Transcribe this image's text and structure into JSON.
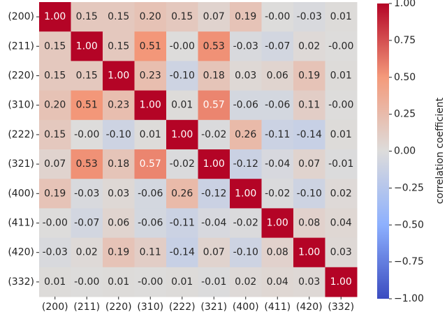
{
  "chart_data": {
    "type": "heatmap",
    "colormap": "coolwarm",
    "x_categories": [
      "(200)",
      "(211)",
      "(220)",
      "(310)",
      "(222)",
      "(321)",
      "(400)",
      "(411)",
      "(420)",
      "(332)"
    ],
    "y_categories": [
      "(200)",
      "(211)",
      "(220)",
      "(310)",
      "(222)",
      "(321)",
      "(400)",
      "(411)",
      "(420)",
      "(332)"
    ],
    "values": [
      [
        1,
        0.15,
        0.15,
        0.2,
        0.15,
        0.07,
        0.19,
        0,
        -0.03,
        0.01
      ],
      [
        0.15,
        1,
        0.15,
        0.51,
        0,
        0.53,
        -0.03,
        -0.07,
        0.02,
        0
      ],
      [
        0.15,
        0.15,
        1,
        0.23,
        -0.1,
        0.18,
        0.03,
        0.06,
        0.19,
        0.01
      ],
      [
        0.2,
        0.51,
        0.23,
        1,
        0.01,
        0.57,
        -0.06,
        -0.06,
        0.11,
        0
      ],
      [
        0.15,
        0,
        -0.1,
        0.01,
        1,
        -0.02,
        0.26,
        -0.11,
        -0.14,
        0.01
      ],
      [
        0.07,
        0.53,
        0.18,
        0.57,
        -0.02,
        1,
        -0.12,
        -0.04,
        0.07,
        -0.01
      ],
      [
        0.19,
        -0.03,
        0.03,
        -0.06,
        0.26,
        -0.12,
        1,
        -0.02,
        -0.1,
        0.02
      ],
      [
        0,
        -0.07,
        0.06,
        -0.06,
        -0.11,
        -0.04,
        -0.02,
        1,
        0.08,
        0.04
      ],
      [
        -0.03,
        0.02,
        0.19,
        0.11,
        -0.14,
        0.07,
        -0.1,
        0.08,
        1,
        0.03
      ],
      [
        0.01,
        0,
        0.01,
        0,
        0.01,
        -0.01,
        0.02,
        0.04,
        0.03,
        1
      ]
    ],
    "value_labels": [
      [
        "1.00",
        "0.15",
        "0.15",
        "0.20",
        "0.15",
        "0.07",
        "0.19",
        "-0.00",
        "-0.03",
        "0.01"
      ],
      [
        "0.15",
        "1.00",
        "0.15",
        "0.51",
        "-0.00",
        "0.53",
        "-0.03",
        "-0.07",
        "0.02",
        "-0.00"
      ],
      [
        "0.15",
        "0.15",
        "1.00",
        "0.23",
        "-0.10",
        "0.18",
        "0.03",
        "0.06",
        "0.19",
        "0.01"
      ],
      [
        "0.20",
        "0.51",
        "0.23",
        "1.00",
        "0.01",
        "0.57",
        "-0.06",
        "-0.06",
        "0.11",
        "-0.00"
      ],
      [
        "0.15",
        "-0.00",
        "-0.10",
        "0.01",
        "1.00",
        "-0.02",
        "0.26",
        "-0.11",
        "-0.14",
        "0.01"
      ],
      [
        "0.07",
        "0.53",
        "0.18",
        "0.57",
        "-0.02",
        "1.00",
        "-0.12",
        "-0.04",
        "0.07",
        "-0.01"
      ],
      [
        "0.19",
        "-0.03",
        "0.03",
        "-0.06",
        "0.26",
        "-0.12",
        "1.00",
        "-0.02",
        "-0.10",
        "0.02"
      ],
      [
        "-0.00",
        "-0.07",
        "0.06",
        "-0.06",
        "-0.11",
        "-0.04",
        "-0.02",
        "1.00",
        "0.08",
        "0.04"
      ],
      [
        "-0.03",
        "0.02",
        "0.19",
        "0.11",
        "-0.14",
        "0.07",
        "-0.10",
        "0.08",
        "1.00",
        "0.03"
      ],
      [
        "0.01",
        "-0.00",
        "0.01",
        "-0.00",
        "0.01",
        "-0.01",
        "0.02",
        "0.04",
        "0.03",
        "1.00"
      ]
    ],
    "colorbar": {
      "label": "correlation coefficient",
      "lim": [
        -1,
        1
      ],
      "ticks": [
        {
          "value": -1,
          "label": "−1.00"
        },
        {
          "value": -0.75,
          "label": "−0.75"
        },
        {
          "value": -0.5,
          "label": "−0.50"
        },
        {
          "value": -0.25,
          "label": "−0.25"
        },
        {
          "value": 0,
          "label": "0.00"
        },
        {
          "value": 0.25,
          "label": "0.25"
        },
        {
          "value": 0.5,
          "label": "0.50"
        },
        {
          "value": 0.75,
          "label": "0.75"
        },
        {
          "value": 1,
          "label": "1.00"
        }
      ]
    }
  }
}
